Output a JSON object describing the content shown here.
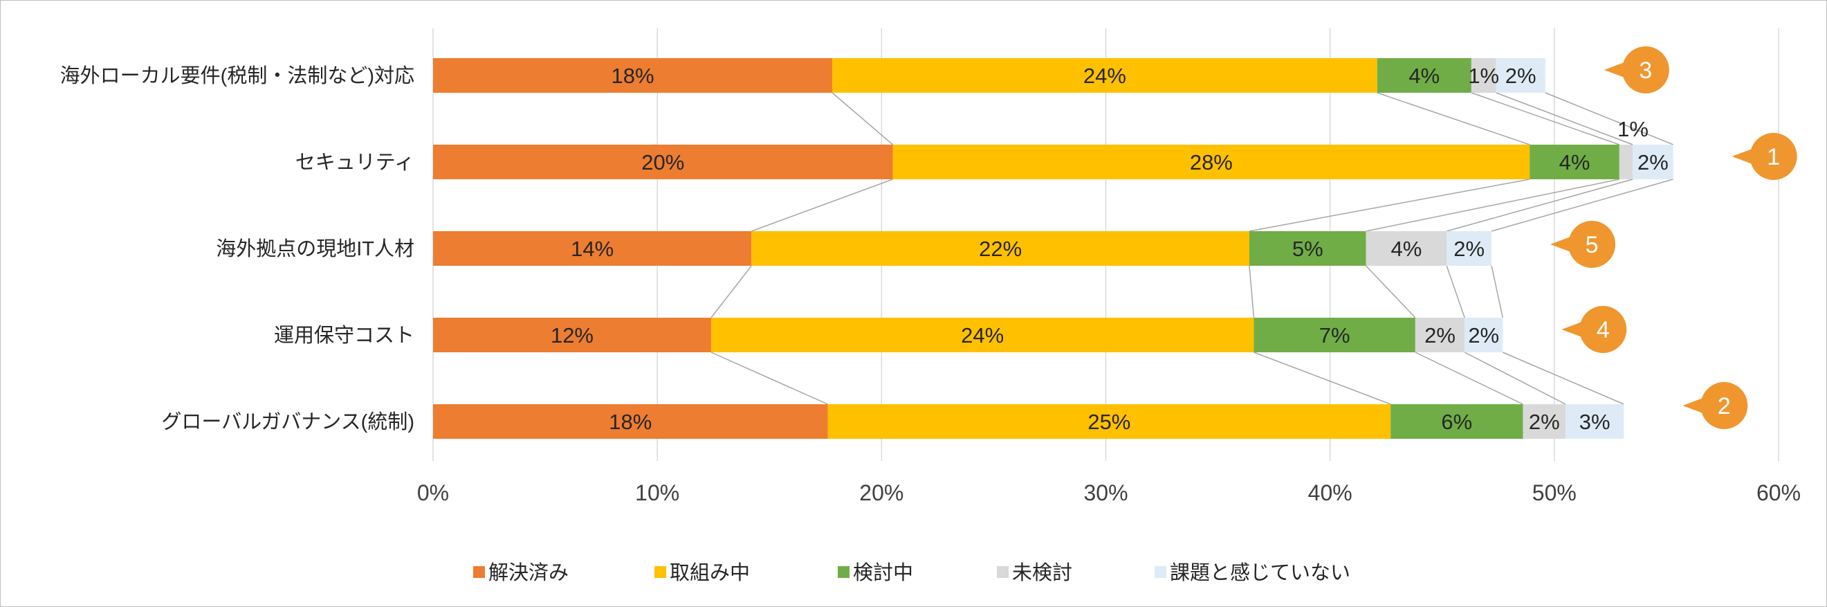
{
  "chart_data": {
    "type": "bar",
    "orientation": "horizontal",
    "stacked": true,
    "categories": [
      "海外ローカル要件(税制・法制など)対応",
      "セキュリティ",
      "海外拠点の現地IT人材",
      "運用保守コスト",
      "グローバルガバナンス(統制)"
    ],
    "series": [
      {
        "name": "解決済み",
        "color": "#ed7d31",
        "values": [
          17.8,
          20.5,
          14.2,
          12.4,
          17.6
        ],
        "labels": [
          "18%",
          "20%",
          "14%",
          "12%",
          "18%"
        ]
      },
      {
        "name": "取組み中",
        "color": "#ffc000",
        "values": [
          24.3,
          28.4,
          22.2,
          24.2,
          25.1
        ],
        "labels": [
          "24%",
          "28%",
          "22%",
          "24%",
          "25%"
        ]
      },
      {
        "name": "検討中",
        "color": "#70ad47",
        "values": [
          4.2,
          4.0,
          5.2,
          7.2,
          5.9
        ],
        "labels": [
          "4%",
          "4%",
          "5%",
          "7%",
          "6%"
        ]
      },
      {
        "name": "未検討",
        "color": "#d9d9d9",
        "values": [
          1.1,
          0.6,
          3.6,
          2.2,
          1.9
        ],
        "labels": [
          "1%",
          "1%",
          "4%",
          "2%",
          "2%"
        ]
      },
      {
        "name": "課題と感じていない",
        "color": "#deebf7",
        "values": [
          2.2,
          1.8,
          2.0,
          1.7,
          2.6
        ],
        "labels": [
          "2%",
          "2%",
          "2%",
          "2%",
          "3%"
        ]
      }
    ],
    "xlim": [
      0,
      60
    ],
    "x_ticks": [
      "0%",
      "10%",
      "20%",
      "30%",
      "40%",
      "50%",
      "60%"
    ],
    "grid": "vertical",
    "legend_position": "bottom",
    "series_lines": true,
    "rank_badges": [
      "3",
      "1",
      "5",
      "4",
      "2"
    ],
    "badge_color": "#f0962e"
  }
}
